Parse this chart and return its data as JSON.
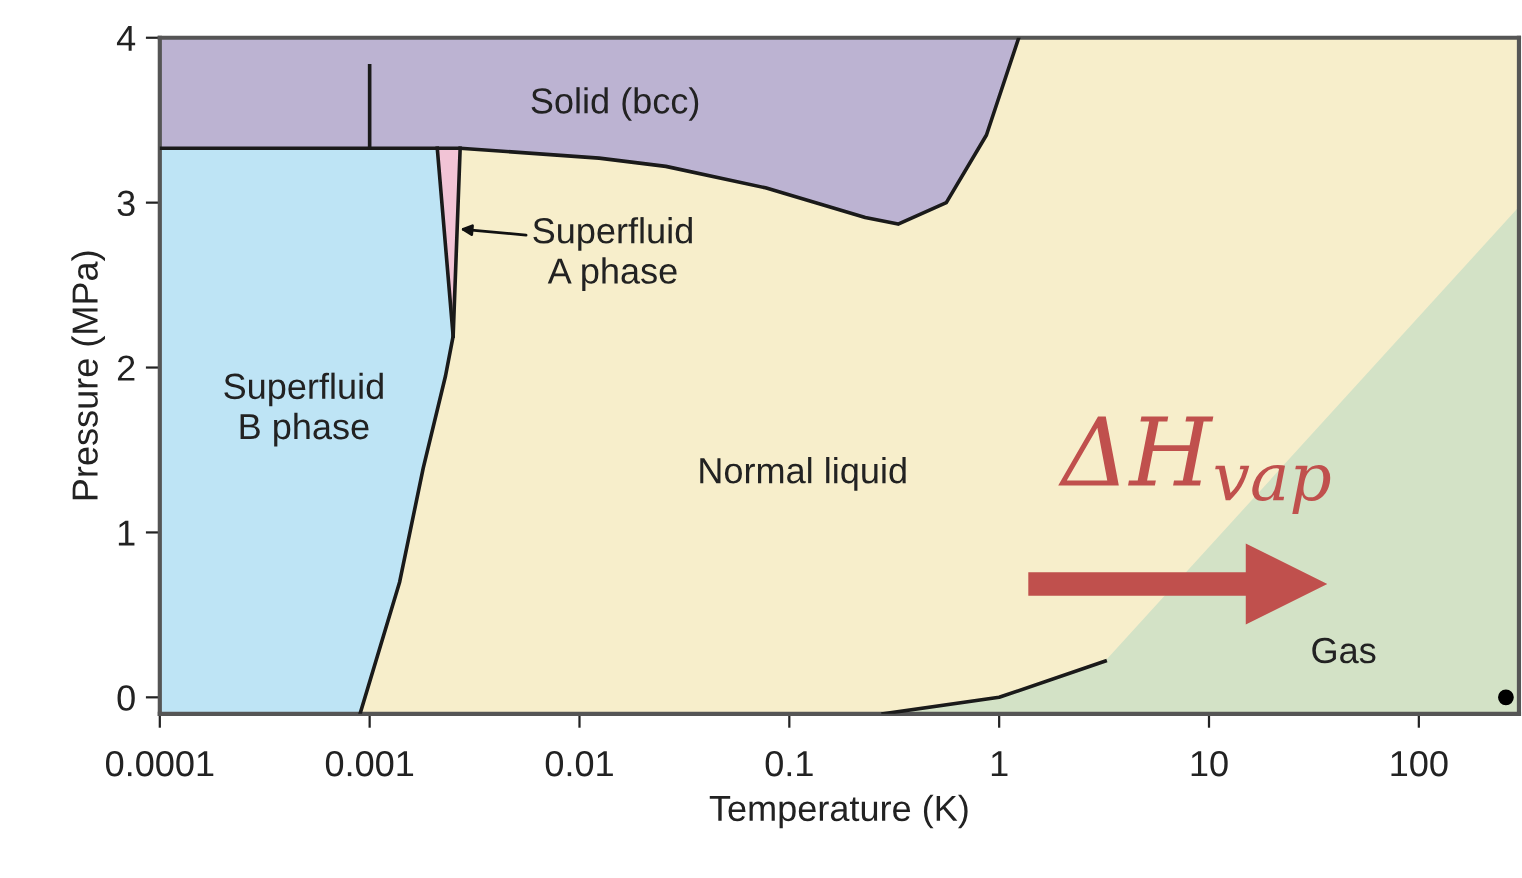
{
  "chart_data": {
    "type": "line",
    "xlabel": "Temperature (K)",
    "ylabel": "Pressure (MPa)",
    "log": "x",
    "grid": false,
    "xlim": [
      0.0001,
      300
    ],
    "ylim": [
      -0.1,
      4
    ],
    "xticks": [
      0.0001,
      0.001,
      0.01,
      0.1,
      1,
      10,
      100
    ],
    "yticks": [
      0,
      1,
      2,
      3,
      4
    ],
    "series": [
      {
        "color": "#1a1a1a",
        "x": [
          0.0001,
          0.0021,
          0.0027,
          0.0124,
          0.0258,
          0.077,
          0.23,
          0.33,
          0.56,
          0.87,
          1.24
        ],
        "values": [
          3.33,
          3.33,
          3.33,
          3.27,
          3.22,
          3.09,
          2.91,
          2.87,
          3.0,
          3.41,
          4.0
        ]
      },
      {
        "color": "#1a1a1a",
        "x": [
          0.001,
          0.001
        ],
        "values": [
          3.33,
          3.83
        ]
      },
      {
        "color": "#1a1a1a",
        "x": [
          0.0009,
          0.00139,
          0.0018,
          0.0023,
          0.0025,
          0.0021
        ],
        "values": [
          -0.1,
          0.7,
          1.39,
          1.95,
          2.19,
          3.33
        ]
      },
      {
        "color": "#1a1a1a",
        "x": [
          0.0025,
          0.0027
        ],
        "values": [
          2.19,
          3.33
        ]
      },
      {
        "color": "#1a1a1a",
        "x": [
          0.28,
          1.0,
          3.2
        ],
        "values": [
          -0.1,
          0.0,
          0.22
        ]
      },
      {
        "type": "scatter",
        "color": "#000000",
        "x": [
          260
        ],
        "values": [
          0
        ]
      }
    ],
    "annotations": [
      "Solid (bcc)",
      "Superfluid\nB phase",
      "Normal liquid",
      "Gas",
      {
        "text": "Superfluid\nA phase",
        "x": 0.0027,
        "y": 2.84
      },
      "ΔH$_{vap}$"
    ]
  }
}
